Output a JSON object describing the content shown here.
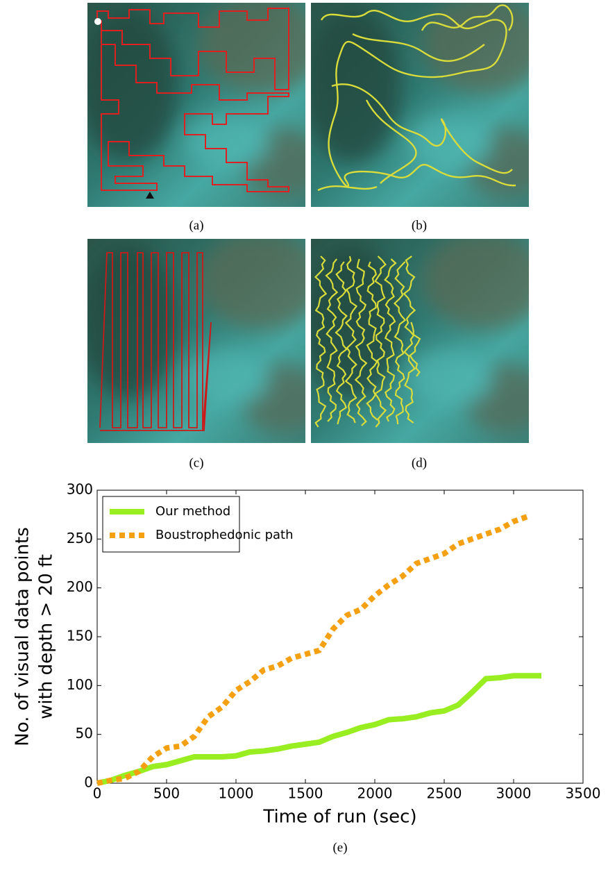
{
  "figure": {
    "labels": [
      "(a)",
      "(b)",
      "(c)",
      "(d)",
      "(e)"
    ]
  },
  "chart_data": {
    "type": "line",
    "xlabel": "Time of run (sec)",
    "ylabel": [
      "No. of visual data points",
      "with depth > 20 ft"
    ],
    "x": [
      0,
      100,
      200,
      300,
      400,
      500,
      600,
      700,
      800,
      900,
      1000,
      1100,
      1200,
      1300,
      1400,
      1500,
      1600,
      1700,
      1800,
      1900,
      2000,
      2100,
      2200,
      2300,
      2400,
      2500,
      2600,
      2700,
      2800,
      2900,
      3000,
      3100,
      3200
    ],
    "series": [
      {
        "name": "Our method",
        "color": "#99ee22",
        "style": "solid",
        "values": [
          0,
          3,
          8,
          12,
          17,
          19,
          23,
          27,
          27,
          27,
          28,
          32,
          33,
          35,
          38,
          40,
          42,
          48,
          52,
          57,
          60,
          65,
          66,
          68,
          72,
          74,
          80,
          93,
          107,
          108,
          110,
          110,
          110
        ]
      },
      {
        "name": "Boustrophedonic path",
        "color": "#f5a010",
        "style": "dashed",
        "values": [
          0,
          3,
          5,
          12,
          27,
          36,
          38,
          48,
          68,
          78,
          95,
          104,
          116,
          120,
          128,
          132,
          136,
          158,
          172,
          178,
          192,
          203,
          212,
          225,
          230,
          235,
          245,
          250,
          255,
          260,
          268,
          273,
          null
        ]
      }
    ],
    "xlim": [
      0,
      3500
    ],
    "xticks": [
      0,
      500,
      1000,
      1500,
      2000,
      2500,
      3000,
      3500
    ],
    "ylim": [
      0,
      300
    ],
    "yticks": [
      0,
      50,
      100,
      150,
      200,
      250,
      300
    ],
    "legend": "upper-left"
  }
}
